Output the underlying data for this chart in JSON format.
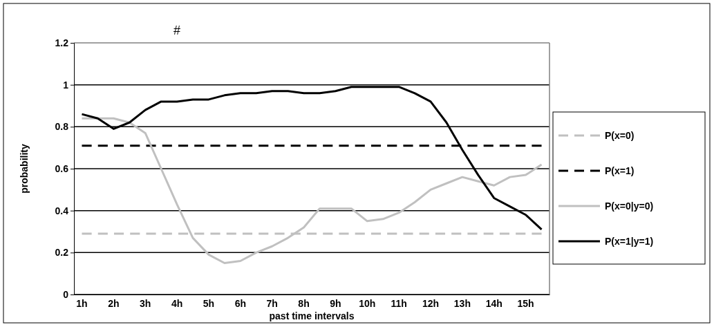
{
  "chart_data": {
    "type": "line",
    "xlabel": "past time intervals",
    "ylabel": "probability",
    "annotations": [
      "#"
    ],
    "categories": [
      "1h",
      null,
      "2h",
      null,
      "3h",
      null,
      "4h",
      null,
      "5h",
      null,
      "6h",
      null,
      "7h",
      null,
      "8h",
      null,
      "9h",
      null,
      "10h",
      null,
      "11h",
      null,
      "12h",
      null,
      "13h",
      null,
      "14h",
      null,
      "15h",
      null
    ],
    "series": [
      {
        "name": "P(x=0)",
        "color": "#c0c0c0",
        "line_style": "dashed",
        "values": [
          0.29,
          0.29,
          0.29,
          0.29,
          0.29,
          0.29,
          0.29,
          0.29,
          0.29,
          0.29,
          0.29,
          0.29,
          0.29,
          0.29,
          0.29,
          0.29,
          0.29,
          0.29,
          0.29,
          0.29,
          0.29,
          0.29,
          0.29,
          0.29,
          0.29,
          0.29,
          0.29,
          0.29,
          0.29,
          0.29
        ]
      },
      {
        "name": "P(x=1)",
        "color": "#000000",
        "line_style": "dashed",
        "values": [
          0.71,
          0.71,
          0.71,
          0.71,
          0.71,
          0.71,
          0.71,
          0.71,
          0.71,
          0.71,
          0.71,
          0.71,
          0.71,
          0.71,
          0.71,
          0.71,
          0.71,
          0.71,
          0.71,
          0.71,
          0.71,
          0.71,
          0.71,
          0.71,
          0.71,
          0.71,
          0.71,
          0.71,
          0.71,
          0.71
        ]
      },
      {
        "name": "P(x=0|y=0)",
        "color": "#c0c0c0",
        "line_style": "solid",
        "values": [
          0.84,
          0.84,
          0.84,
          0.82,
          0.77,
          0.6,
          0.43,
          0.27,
          0.19,
          0.15,
          0.16,
          0.2,
          0.23,
          0.27,
          0.32,
          0.41,
          0.41,
          0.41,
          0.35,
          0.36,
          0.39,
          0.44,
          0.5,
          0.53,
          0.56,
          0.54,
          0.52,
          0.56,
          0.57,
          0.62
        ]
      },
      {
        "name": "P(x=1|y=1)",
        "color": "#000000",
        "line_style": "solid",
        "values": [
          0.86,
          0.84,
          0.79,
          0.82,
          0.88,
          0.92,
          0.92,
          0.93,
          0.93,
          0.95,
          0.96,
          0.96,
          0.97,
          0.97,
          0.96,
          0.96,
          0.97,
          0.99,
          0.99,
          0.99,
          0.99,
          0.96,
          0.92,
          0.82,
          0.69,
          0.57,
          0.46,
          0.42,
          0.38,
          0.31
        ]
      }
    ],
    "ylim": [
      0,
      1.2
    ],
    "yticks": [
      0,
      0.2,
      0.4,
      0.6,
      0.8,
      1,
      1.2
    ],
    "grid": "y",
    "legend": "right",
    "marker": "none"
  }
}
